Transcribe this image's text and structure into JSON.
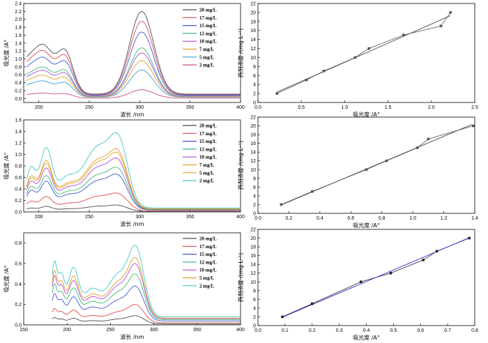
{
  "chart_data": [
    {
      "type": "line",
      "xlabel": "波长 /nm",
      "ylabel": "吸光度 /A°",
      "xlim": [
        185,
        400
      ],
      "ylim": [
        -0.1,
        2.4
      ],
      "xticks": [
        200,
        250,
        300,
        350,
        400
      ],
      "yticks": [
        0.0,
        0.2,
        0.4,
        0.6,
        0.8,
        1.0,
        1.2,
        1.4,
        1.6,
        1.8,
        2.0,
        2.2,
        2.4
      ],
      "ytick_decimals": 1,
      "grid": false,
      "legend": "top-right",
      "model": {
        "cut": 188,
        "baseline": 0.05,
        "gaussians": [
          [
            192,
            14,
            0.45
          ],
          [
            207,
            8,
            0.3
          ],
          [
            226,
            8,
            0.5
          ],
          [
            302,
            12,
            1.0
          ]
        ]
      },
      "series": [
        {
          "name": "20 mg/L",
          "color": "#4a4a4a",
          "peak": 2.2
        },
        {
          "name": "17 mg/L",
          "color": "#e04848",
          "peak": 1.95
        },
        {
          "name": "15 mg/L",
          "color": "#3b55d8",
          "peak": 1.68
        },
        {
          "name": "12 mg/L",
          "color": "#3bb870",
          "peak": 1.28
        },
        {
          "name": "10 mg/L",
          "color": "#b048d8",
          "peak": 1.15
        },
        {
          "name": "7 mg/L",
          "color": "#e0a020",
          "peak": 0.95
        },
        {
          "name": "5 mg/L",
          "color": "#3b9ee0",
          "peak": 0.72
        },
        {
          "name": "2 mg/L",
          "color": "#d04878",
          "peak": 0.22
        }
      ]
    },
    {
      "type": "scatter",
      "xlabel": "吸光度 /A°",
      "ylabel": "药剂浓度 /(mg·L⁻¹)",
      "xlim": [
        0.0,
        2.5
      ],
      "ylim": [
        0,
        22
      ],
      "xticks": [
        0.0,
        0.5,
        1.0,
        1.5,
        2.0,
        2.5
      ],
      "yticks": [
        0,
        2,
        4,
        6,
        8,
        10,
        12,
        14,
        16,
        18,
        20,
        22
      ],
      "xtick_decimals": 1,
      "grid": false,
      "points": {
        "x": [
          0.22,
          0.56,
          0.76,
          1.12,
          1.28,
          1.68,
          2.11,
          2.22
        ],
        "y": [
          2,
          5,
          7,
          10,
          12,
          15,
          17,
          20
        ]
      },
      "fit": {
        "x": [
          0.22,
          2.22
        ],
        "y": [
          2.3,
          19.3
        ]
      },
      "marker_color": "#555555",
      "line_color": "#555555"
    },
    {
      "type": "line",
      "xlabel": "波长 /nm",
      "ylabel": "吸光度 /A°",
      "xlim": [
        185,
        400
      ],
      "ylim": [
        0.0,
        1.6
      ],
      "xticks": [
        200,
        250,
        300,
        350,
        400
      ],
      "yticks": [
        0.0,
        0.2,
        0.4,
        0.6,
        0.8,
        1.0,
        1.2,
        1.4,
        1.6
      ],
      "ytick_decimals": 1,
      "grid": false,
      "legend": "top-right",
      "model": {
        "cut": 188,
        "baseline": 0.05,
        "gaussians": [
          [
            192,
            5,
            0.65
          ],
          [
            207,
            6,
            0.95
          ],
          [
            227,
            10,
            0.45
          ],
          [
            258,
            14,
            1.0
          ],
          [
            280,
            9,
            0.92
          ]
        ]
      },
      "series": [
        {
          "name": "20 mg/L",
          "color": "#4a4a4a",
          "peak": 0.12
        },
        {
          "name": "17 mg/L",
          "color": "#e04848",
          "peak": 0.33
        },
        {
          "name": "15 mg/L",
          "color": "#3b55d8",
          "peak": 0.66
        },
        {
          "name": "12 mg/L",
          "color": "#3bb870",
          "peak": 0.78
        },
        {
          "name": "10 mg/L",
          "color": "#b048d8",
          "peak": 0.94
        },
        {
          "name": "7 mg/L",
          "color": "#e0a020",
          "peak": 1.04
        },
        {
          "name": "5 mg/L",
          "color": "#e0a020",
          "peak": 1.1
        },
        {
          "name": "2 mg/L",
          "color": "#3bc8c8",
          "peak": 1.38
        }
      ]
    },
    {
      "type": "scatter",
      "xlabel": "吸光度 /A°",
      "ylabel": "药剂浓度 /(mg·L⁻¹)",
      "xlim": [
        0.0,
        1.4
      ],
      "ylim": [
        0,
        22
      ],
      "xticks": [
        0.0,
        0.2,
        0.4,
        0.6,
        0.8,
        1.0,
        1.2,
        1.4
      ],
      "yticks": [
        0,
        2,
        4,
        6,
        8,
        10,
        12,
        14,
        16,
        18,
        20,
        22
      ],
      "xtick_decimals": 1,
      "grid": false,
      "points": {
        "x": [
          0.15,
          0.35,
          0.7,
          0.83,
          1.03,
          1.1,
          1.39
        ],
        "y": [
          2,
          5,
          10,
          12,
          15,
          17,
          20
        ]
      },
      "fit": {
        "x": [
          0.15,
          1.38
        ],
        "y": [
          1.9,
          20.3
        ]
      },
      "marker_color": "#555555",
      "line_color": "#555555"
    },
    {
      "type": "line",
      "xlabel": "波长 /nm",
      "ylabel": "吸光度 /A°",
      "xlim": [
        150,
        400
      ],
      "ylim": [
        0.0,
        0.9
      ],
      "xticks": [
        150,
        200,
        250,
        300,
        350,
        400
      ],
      "yticks": [
        0.0,
        0.2,
        0.4,
        0.6,
        0.8
      ],
      "ytick_decimals": 1,
      "grid": false,
      "legend": "top-right",
      "model": {
        "cut": 183,
        "baseline": 0.1,
        "gaussians": [
          [
            185,
            3,
            0.75
          ],
          [
            193,
            4,
            0.6
          ],
          [
            207,
            6,
            0.7
          ],
          [
            228,
            10,
            0.4
          ],
          [
            258,
            12,
            0.6
          ],
          [
            280,
            9,
            0.95
          ]
        ]
      },
      "series": [
        {
          "name": "20 mg/L",
          "color": "#4a4a4a",
          "peak": 0.09
        },
        {
          "name": "17 mg/L",
          "color": "#e04848",
          "peak": 0.2
        },
        {
          "name": "15 mg/L",
          "color": "#3b55d8",
          "peak": 0.38
        },
        {
          "name": "12 mg/L",
          "color": "#3bb870",
          "peak": 0.5
        },
        {
          "name": "10 mg/L",
          "color": "#b048d8",
          "peak": 0.6
        },
        {
          "name": "5 mg/L",
          "color": "#e0a020",
          "peak": 0.66
        },
        {
          "name": "2 mg/L",
          "color": "#3bc8c8",
          "peak": 0.78
        }
      ]
    },
    {
      "type": "scatter",
      "xlabel": "吸光度 /A°",
      "ylabel": "药剂浓度 /(mg·L⁻¹)",
      "xlim": [
        0.0,
        0.8
      ],
      "ylim": [
        0,
        22
      ],
      "xticks": [
        0.0,
        0.1,
        0.2,
        0.3,
        0.4,
        0.5,
        0.6,
        0.7,
        0.8
      ],
      "yticks": [
        0,
        2,
        4,
        6,
        8,
        10,
        12,
        14,
        16,
        18,
        20,
        22
      ],
      "xtick_decimals": 1,
      "grid": false,
      "points": {
        "x": [
          0.09,
          0.2,
          0.38,
          0.49,
          0.61,
          0.66,
          0.78
        ],
        "y": [
          2,
          5,
          10,
          12,
          15,
          17,
          20
        ]
      },
      "fit": {
        "x": [
          0.09,
          0.78
        ],
        "y": [
          1.9,
          20.1
        ]
      },
      "marker_color": "#222222",
      "line_color": "#3b3bd8"
    }
  ]
}
